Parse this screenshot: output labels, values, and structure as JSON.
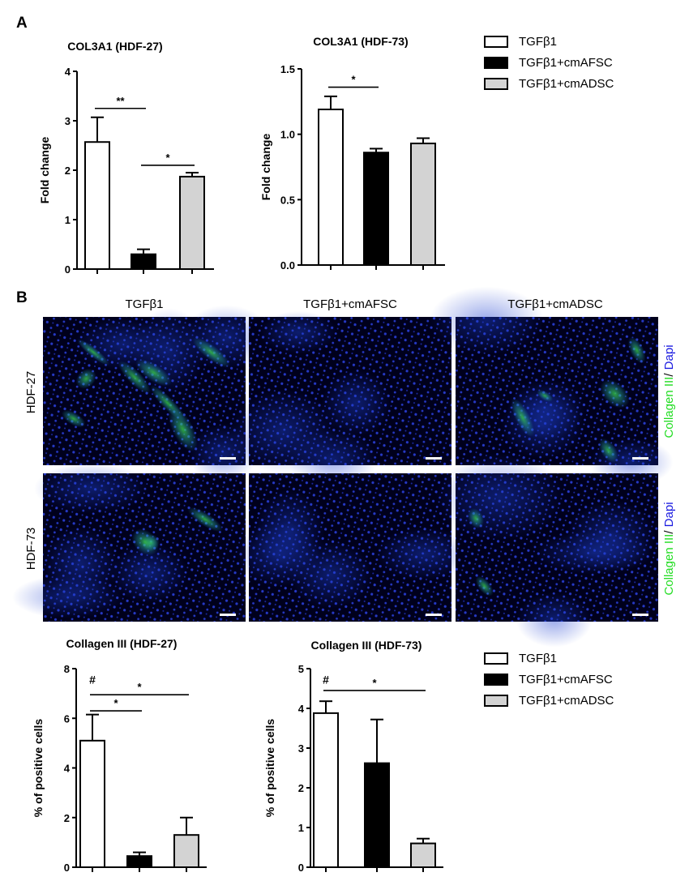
{
  "panel_labels": [
    "A",
    "B"
  ],
  "legend_entries": [
    {
      "name": "TGFβ1",
      "color": "#ffffff"
    },
    {
      "name": "TGFβ1+cmAFSC",
      "color": "#000000"
    },
    {
      "name": "TGFβ1+cmADSC",
      "color": "#d3d3d3"
    }
  ],
  "micrographs": {
    "column_titles": [
      "TGFβ1",
      "TGFβ1+cmAFSC",
      "TGFβ1+cmADSC"
    ],
    "row_labels": [
      "HDF-27",
      "HDF-73"
    ],
    "stain_label_green": "Collagen III",
    "stain_label_sep": "/ ",
    "stain_label_blue": "Dapi",
    "nuclei_color": "#2a3fd8",
    "collagen_color": "#3ddc4a",
    "collagen_intensity": [
      [
        0.85,
        0.0,
        0.55
      ],
      [
        0.35,
        0.0,
        0.2
      ]
    ]
  },
  "chart_data": [
    {
      "type": "bar",
      "title": "COL3A1 (HDF-27)",
      "xlabel": "",
      "ylabel": "Fold change",
      "categories": [
        "TGFβ1",
        "TGFβ1+cmAFSC",
        "TGFβ1+cmADSC"
      ],
      "values": [
        2.57,
        0.3,
        1.87
      ],
      "errors": [
        0.5,
        0.1,
        0.08
      ],
      "ylim": [
        0,
        4
      ],
      "yticks": [
        "0",
        "1",
        "2",
        "3",
        "4"
      ],
      "significance": [
        {
          "from": 0,
          "to": 1,
          "y": 3.25,
          "label": "**"
        },
        {
          "from": 1,
          "to": 2,
          "y": 2.1,
          "label": "*"
        }
      ]
    },
    {
      "type": "bar",
      "title": "COL3A1 (HDF-73)",
      "xlabel": "",
      "ylabel": "Fold change",
      "categories": [
        "TGFβ1",
        "TGFβ1+cmAFSC",
        "TGFβ1+cmADSC"
      ],
      "values": [
        1.19,
        0.86,
        0.93
      ],
      "errors": [
        0.1,
        0.03,
        0.04
      ],
      "ylim": [
        0,
        1.5
      ],
      "yticks": [
        "0.0",
        "0.5",
        "1.0",
        "1.5"
      ],
      "significance": [
        {
          "from": 0,
          "to": 1,
          "y": 1.36,
          "label": "*"
        }
      ]
    },
    {
      "type": "bar",
      "title": "Collagen III (HDF-27)",
      "xlabel": "",
      "ylabel": "% of positive cells",
      "categories": [
        "TGFβ1",
        "TGFβ1+cmAFSC",
        "TGFβ1+cmADSC"
      ],
      "values": [
        5.1,
        0.45,
        1.3
      ],
      "errors": [
        1.05,
        0.15,
        0.7
      ],
      "ylim": [
        0,
        8
      ],
      "yticks": [
        "0",
        "2",
        "4",
        "6",
        "8"
      ],
      "significance": [
        {
          "from": 0,
          "to": 2,
          "y": 6.95,
          "label": "*"
        },
        {
          "from": 0,
          "to": 1,
          "y": 6.3,
          "label": "*"
        }
      ],
      "markers": [
        {
          "bar": 0,
          "label": "#",
          "y": 7.6
        }
      ]
    },
    {
      "type": "bar",
      "title": "Collagen III (HDF-73)",
      "xlabel": "",
      "ylabel": "% of positive cells",
      "categories": [
        "TGFβ1",
        "TGFβ1+cmAFSC",
        "TGFβ1+cmADSC"
      ],
      "values": [
        3.88,
        2.62,
        0.6
      ],
      "errors": [
        0.3,
        1.1,
        0.12
      ],
      "ylim": [
        0,
        5
      ],
      "yticks": [
        "0",
        "1",
        "2",
        "3",
        "4",
        "5"
      ],
      "significance": [
        {
          "from": 0,
          "to": 2,
          "y": 4.45,
          "label": "*"
        }
      ],
      "markers": [
        {
          "bar": 0,
          "label": "#",
          "y": 4.75
        }
      ]
    }
  ]
}
